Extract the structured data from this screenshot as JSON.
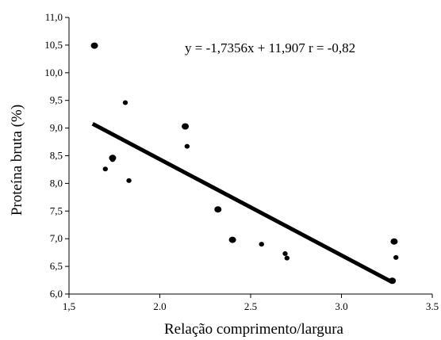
{
  "chart_data": {
    "type": "scatter",
    "title": "",
    "xlabel": "Relação comprimento/largura",
    "ylabel": "Proteína bruta (%)",
    "xlim": [
      1.5,
      3.5
    ],
    "ylim": [
      6.0,
      11.0
    ],
    "x_ticks": [
      "1,5",
      "2.0",
      "2.5",
      "3.0",
      "3.5"
    ],
    "x_tick_values": [
      1.5,
      2.0,
      2.5,
      3.0,
      3.5
    ],
    "y_ticks": [
      "6,0",
      "6,5",
      "7,0",
      "7,5",
      "8,0",
      "8,5",
      "9,0",
      "9,5",
      "10,0",
      "10,5",
      "11,0"
    ],
    "y_tick_values": [
      6.0,
      6.5,
      7.0,
      7.5,
      8.0,
      8.5,
      9.0,
      9.5,
      10.0,
      10.5,
      11.0
    ],
    "grid": false,
    "legend": "none",
    "points": [
      {
        "x": 1.64,
        "y": 10.49,
        "size": "large"
      },
      {
        "x": 1.81,
        "y": 9.46,
        "size": "small"
      },
      {
        "x": 2.14,
        "y": 9.03,
        "size": "large"
      },
      {
        "x": 2.15,
        "y": 8.67,
        "size": "small"
      },
      {
        "x": 1.74,
        "y": 8.46,
        "size": "large"
      },
      {
        "x": 1.74,
        "y": 8.43,
        "size": "small"
      },
      {
        "x": 1.7,
        "y": 8.26,
        "size": "small"
      },
      {
        "x": 1.83,
        "y": 8.05,
        "size": "small"
      },
      {
        "x": 2.32,
        "y": 7.53,
        "size": "large"
      },
      {
        "x": 2.4,
        "y": 6.98,
        "size": "large"
      },
      {
        "x": 2.56,
        "y": 6.9,
        "size": "small"
      },
      {
        "x": 2.69,
        "y": 6.73,
        "size": "small"
      },
      {
        "x": 2.7,
        "y": 6.65,
        "size": "small"
      },
      {
        "x": 3.29,
        "y": 6.95,
        "size": "large"
      },
      {
        "x": 3.3,
        "y": 6.66,
        "size": "small"
      },
      {
        "x": 3.28,
        "y": 6.24,
        "size": "large"
      }
    ],
    "trendline": {
      "slope": -1.7356,
      "intercept": 11.907,
      "x_start": 1.63,
      "x_end": 3.28
    },
    "annotation": "y = -1,7356x + 11,907 r = -0,82"
  }
}
